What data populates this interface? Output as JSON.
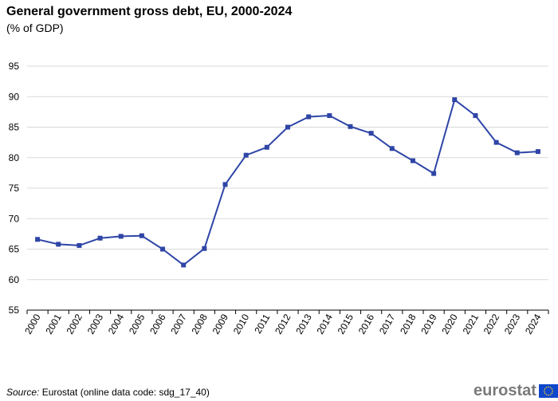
{
  "header": {
    "title": "General government gross debt, EU, 2000-2024",
    "subtitle": "(% of GDP)"
  },
  "footer": {
    "source_prefix": "Source:",
    "source_text": " Eurostat (online data code: sdg_17_40)",
    "logo_text": "eurostat"
  },
  "colors": {
    "series": "#2e45a6",
    "grid": "#d9d9d9",
    "axis": "#000000",
    "flag_blue": "#0e47cb",
    "flag_star": "#ffd617",
    "logo_text": "#7a7a7a"
  },
  "chart_data": {
    "type": "line",
    "title": "General government gross debt, EU, 2000-2024",
    "subtitle": "(% of GDP)",
    "xlabel": "",
    "ylabel": "",
    "ylim": [
      55,
      95
    ],
    "yticks": [
      55,
      60,
      65,
      70,
      75,
      80,
      85,
      90,
      95
    ],
    "grid": true,
    "legend": "none",
    "categories": [
      "2000",
      "2001",
      "2002",
      "2003",
      "2004",
      "2005",
      "2006",
      "2007",
      "2008",
      "2009",
      "2010",
      "2011",
      "2012",
      "2013",
      "2014",
      "2015",
      "2016",
      "2017",
      "2018",
      "2019",
      "2020",
      "2021",
      "2022",
      "2023",
      "2024"
    ],
    "series": [
      {
        "values": [
          66.6,
          65.8,
          65.6,
          66.8,
          67.1,
          67.2,
          65.0,
          62.4,
          65.1,
          75.6,
          80.4,
          81.7,
          85.0,
          86.7,
          86.9,
          85.1,
          84.0,
          81.5,
          79.5,
          77.4,
          89.5,
          86.9,
          82.5,
          80.8,
          81.0
        ],
        "marker": "square"
      }
    ]
  }
}
